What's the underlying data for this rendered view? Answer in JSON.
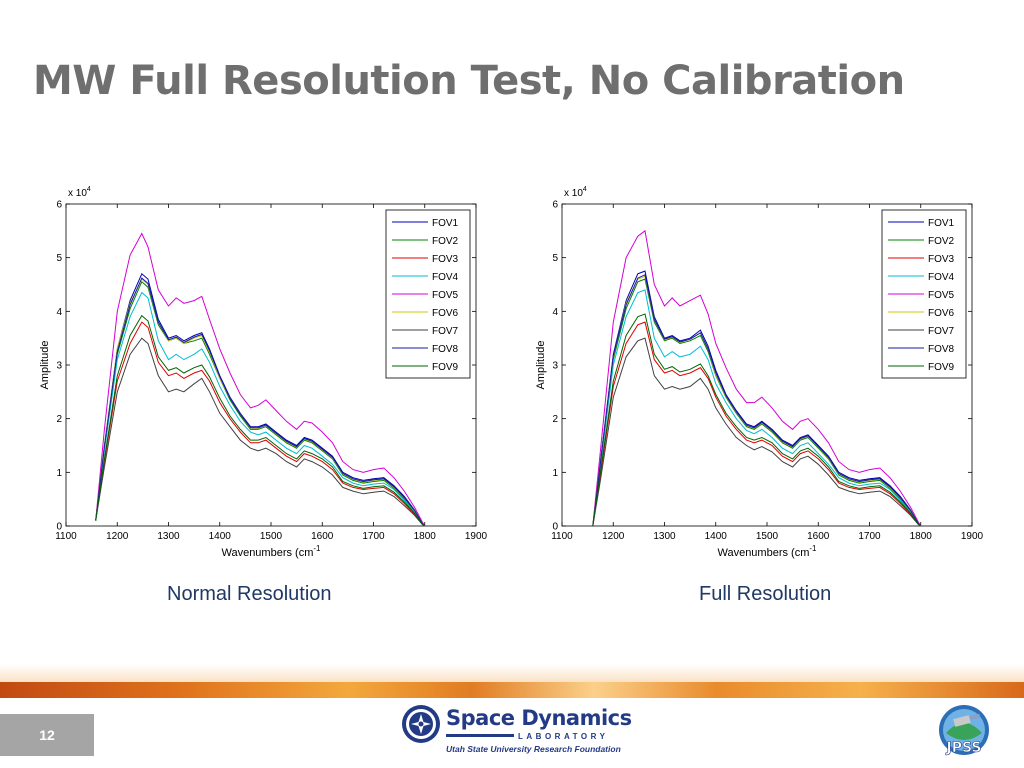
{
  "slide": {
    "title": "MW Full Resolution Test, No Calibration",
    "page_number": "12"
  },
  "captions": [
    "Normal Resolution",
    "Full Resolution"
  ],
  "footer": {
    "sdl_name": "Space Dynamics",
    "sdl_lab": "LABORATORY",
    "sdl_foundation": "Utah State University Research Foundation",
    "jpss_text": "JPSS"
  },
  "colors": {
    "title": "#6f6f6f",
    "caption": "#1f3864",
    "band": "#e0731d",
    "sdl_blue": "#233a86"
  },
  "chart_data": [
    {
      "type": "line",
      "caption": "Normal Resolution",
      "xlabel": "Wavenumbers (cm",
      "xlabel_sup": "-1",
      "ylabel": "Amplitude",
      "exponent_base": "x 10",
      "exponent_power": "4",
      "xlim": [
        1100,
        1900
      ],
      "ylim": [
        0,
        6
      ],
      "xticks": [
        1100,
        1200,
        1300,
        1400,
        1500,
        1600,
        1700,
        1800,
        1900
      ],
      "yticks": [
        0,
        1,
        2,
        3,
        4,
        5,
        6
      ],
      "legend_position": "top-right",
      "grid": false,
      "x": [
        1158,
        1175,
        1200,
        1225,
        1248,
        1260,
        1280,
        1300,
        1315,
        1330,
        1350,
        1365,
        1380,
        1400,
        1420,
        1440,
        1460,
        1475,
        1490,
        1510,
        1530,
        1550,
        1565,
        1580,
        1600,
        1620,
        1640,
        1660,
        1680,
        1700,
        1720,
        1740,
        1760,
        1780,
        1795,
        1800
      ],
      "series": [
        {
          "name": "FOV1",
          "color": "#0000b8",
          "values": [
            0.1,
            1.5,
            3.3,
            4.2,
            4.7,
            4.6,
            3.85,
            3.5,
            3.55,
            3.45,
            3.55,
            3.6,
            3.3,
            2.8,
            2.4,
            2.1,
            1.85,
            1.85,
            1.9,
            1.75,
            1.6,
            1.5,
            1.65,
            1.6,
            1.45,
            1.3,
            1.0,
            0.9,
            0.85,
            0.88,
            0.9,
            0.75,
            0.55,
            0.3,
            0.05,
            0.0
          ]
        },
        {
          "name": "FOV2",
          "color": "#008000",
          "values": [
            0.1,
            1.45,
            3.2,
            4.05,
            4.55,
            4.45,
            3.75,
            3.45,
            3.5,
            3.4,
            3.45,
            3.5,
            3.2,
            2.75,
            2.35,
            2.05,
            1.8,
            1.8,
            1.85,
            1.7,
            1.55,
            1.45,
            1.6,
            1.55,
            1.4,
            1.25,
            0.95,
            0.85,
            0.8,
            0.83,
            0.85,
            0.7,
            0.5,
            0.28,
            0.05,
            0.0
          ]
        },
        {
          "name": "FOV3",
          "color": "#e00000",
          "values": [
            0.1,
            1.2,
            2.7,
            3.4,
            3.8,
            3.7,
            3.05,
            2.8,
            2.85,
            2.75,
            2.85,
            2.9,
            2.7,
            2.3,
            2.0,
            1.75,
            1.55,
            1.55,
            1.6,
            1.45,
            1.3,
            1.2,
            1.35,
            1.3,
            1.2,
            1.05,
            0.8,
            0.72,
            0.68,
            0.7,
            0.72,
            0.6,
            0.42,
            0.22,
            0.04,
            0.0
          ]
        },
        {
          "name": "FOV4",
          "color": "#00bcd4",
          "values": [
            0.1,
            1.4,
            3.1,
            3.9,
            4.35,
            4.25,
            3.45,
            3.1,
            3.2,
            3.1,
            3.2,
            3.3,
            3.05,
            2.6,
            2.25,
            1.95,
            1.75,
            1.7,
            1.75,
            1.6,
            1.45,
            1.35,
            1.5,
            1.45,
            1.3,
            1.15,
            0.9,
            0.8,
            0.75,
            0.78,
            0.8,
            0.68,
            0.48,
            0.26,
            0.05,
            0.0
          ]
        },
        {
          "name": "FOV5",
          "color": "#d400d4",
          "values": [
            0.1,
            1.8,
            4.0,
            5.05,
            5.45,
            5.2,
            4.4,
            4.1,
            4.25,
            4.15,
            4.2,
            4.28,
            3.85,
            3.3,
            2.85,
            2.45,
            2.2,
            2.25,
            2.35,
            2.15,
            1.95,
            1.8,
            1.95,
            1.92,
            1.75,
            1.55,
            1.2,
            1.05,
            1.0,
            1.05,
            1.08,
            0.9,
            0.65,
            0.35,
            0.08,
            0.0
          ]
        },
        {
          "name": "FOV6",
          "color": "#c8c800",
          "values": [
            0.1,
            1.5,
            3.3,
            4.15,
            4.6,
            4.5,
            3.8,
            3.45,
            3.5,
            3.4,
            3.5,
            3.55,
            3.25,
            2.75,
            2.38,
            2.08,
            1.82,
            1.82,
            1.88,
            1.72,
            1.57,
            1.47,
            1.62,
            1.57,
            1.42,
            1.27,
            0.97,
            0.87,
            0.82,
            0.85,
            0.87,
            0.72,
            0.52,
            0.29,
            0.05,
            0.0
          ]
        },
        {
          "name": "FOV7",
          "color": "#404040",
          "values": [
            0.1,
            1.1,
            2.5,
            3.2,
            3.5,
            3.4,
            2.8,
            2.5,
            2.55,
            2.5,
            2.65,
            2.75,
            2.5,
            2.1,
            1.85,
            1.6,
            1.45,
            1.4,
            1.45,
            1.35,
            1.2,
            1.1,
            1.25,
            1.2,
            1.1,
            0.95,
            0.72,
            0.65,
            0.6,
            0.63,
            0.65,
            0.55,
            0.38,
            0.2,
            0.03,
            0.0
          ]
        },
        {
          "name": "FOV8",
          "color": "#1a1aa6",
          "values": [
            0.1,
            1.48,
            3.25,
            4.12,
            4.62,
            4.52,
            3.8,
            3.47,
            3.52,
            3.42,
            3.52,
            3.57,
            3.27,
            2.78,
            2.38,
            2.08,
            1.83,
            1.83,
            1.88,
            1.73,
            1.58,
            1.48,
            1.63,
            1.58,
            1.43,
            1.28,
            0.98,
            0.88,
            0.83,
            0.86,
            0.88,
            0.73,
            0.53,
            0.29,
            0.05,
            0.0
          ]
        },
        {
          "name": "FOV9",
          "color": "#006400",
          "values": [
            0.1,
            1.25,
            2.8,
            3.55,
            3.92,
            3.82,
            3.15,
            2.9,
            2.95,
            2.85,
            2.95,
            3.0,
            2.78,
            2.38,
            2.05,
            1.8,
            1.6,
            1.6,
            1.65,
            1.5,
            1.35,
            1.25,
            1.4,
            1.35,
            1.25,
            1.1,
            0.83,
            0.75,
            0.7,
            0.73,
            0.75,
            0.63,
            0.45,
            0.24,
            0.04,
            0.0
          ]
        }
      ]
    },
    {
      "type": "line",
      "caption": "Full Resolution",
      "xlabel": "Wavenumbers (cm",
      "xlabel_sup": "-1",
      "ylabel": "Amplitude",
      "exponent_base": "x 10",
      "exponent_power": "4",
      "xlim": [
        1100,
        1900
      ],
      "ylim": [
        0,
        6
      ],
      "xticks": [
        1100,
        1200,
        1300,
        1400,
        1500,
        1600,
        1700,
        1800,
        1900
      ],
      "yticks": [
        0,
        1,
        2,
        3,
        4,
        5,
        6
      ],
      "legend_position": "top-right",
      "grid": false,
      "x": [
        1160,
        1175,
        1200,
        1225,
        1248,
        1262,
        1280,
        1300,
        1315,
        1330,
        1350,
        1370,
        1385,
        1400,
        1420,
        1440,
        1460,
        1475,
        1490,
        1510,
        1530,
        1550,
        1565,
        1580,
        1600,
        1620,
        1640,
        1660,
        1680,
        1700,
        1720,
        1740,
        1760,
        1780,
        1795,
        1800
      ],
      "series": [
        {
          "name": "FOV1",
          "color": "#0000b8",
          "values": [
            0.0,
            1.2,
            3.2,
            4.2,
            4.7,
            4.75,
            3.9,
            3.5,
            3.55,
            3.45,
            3.5,
            3.65,
            3.35,
            2.9,
            2.45,
            2.15,
            1.9,
            1.85,
            1.95,
            1.8,
            1.6,
            1.5,
            1.65,
            1.7,
            1.5,
            1.3,
            1.0,
            0.9,
            0.85,
            0.88,
            0.9,
            0.75,
            0.55,
            0.3,
            0.05,
            0.0
          ]
        },
        {
          "name": "FOV2",
          "color": "#008000",
          "values": [
            0.0,
            1.15,
            3.1,
            4.05,
            4.55,
            4.6,
            3.8,
            3.45,
            3.5,
            3.4,
            3.45,
            3.55,
            3.25,
            2.8,
            2.4,
            2.1,
            1.85,
            1.8,
            1.9,
            1.75,
            1.55,
            1.45,
            1.6,
            1.65,
            1.45,
            1.25,
            0.95,
            0.85,
            0.8,
            0.83,
            0.85,
            0.7,
            0.5,
            0.28,
            0.05,
            0.0
          ]
        },
        {
          "name": "FOV3",
          "color": "#e00000",
          "values": [
            0.0,
            0.95,
            2.6,
            3.4,
            3.75,
            3.8,
            3.1,
            2.85,
            2.9,
            2.8,
            2.85,
            2.95,
            2.75,
            2.4,
            2.05,
            1.8,
            1.6,
            1.55,
            1.6,
            1.5,
            1.3,
            1.2,
            1.35,
            1.4,
            1.25,
            1.05,
            0.8,
            0.72,
            0.68,
            0.7,
            0.72,
            0.6,
            0.42,
            0.22,
            0.04,
            0.0
          ]
        },
        {
          "name": "FOV4",
          "color": "#00bcd4",
          "values": [
            0.0,
            1.1,
            3.0,
            3.9,
            4.35,
            4.4,
            3.5,
            3.15,
            3.25,
            3.15,
            3.2,
            3.35,
            3.1,
            2.65,
            2.3,
            2.0,
            1.78,
            1.72,
            1.8,
            1.65,
            1.45,
            1.35,
            1.5,
            1.55,
            1.35,
            1.15,
            0.9,
            0.8,
            0.75,
            0.78,
            0.8,
            0.68,
            0.48,
            0.26,
            0.05,
            0.0
          ]
        },
        {
          "name": "FOV5",
          "color": "#d400d4",
          "values": [
            0.0,
            1.4,
            3.8,
            5.0,
            5.4,
            5.5,
            4.5,
            4.1,
            4.25,
            4.1,
            4.2,
            4.3,
            3.95,
            3.4,
            2.95,
            2.55,
            2.3,
            2.3,
            2.4,
            2.2,
            1.95,
            1.8,
            1.95,
            2.0,
            1.8,
            1.55,
            1.2,
            1.05,
            1.0,
            1.05,
            1.08,
            0.9,
            0.65,
            0.35,
            0.08,
            0.0
          ]
        },
        {
          "name": "FOV6",
          "color": "#c8c800",
          "values": [
            0.0,
            1.18,
            3.15,
            4.15,
            4.6,
            4.65,
            3.85,
            3.47,
            3.52,
            3.42,
            3.48,
            3.6,
            3.3,
            2.82,
            2.42,
            2.12,
            1.87,
            1.82,
            1.92,
            1.77,
            1.57,
            1.47,
            1.62,
            1.67,
            1.47,
            1.27,
            0.97,
            0.87,
            0.82,
            0.85,
            0.87,
            0.72,
            0.52,
            0.29,
            0.05,
            0.0
          ]
        },
        {
          "name": "FOV7",
          "color": "#404040",
          "values": [
            0.0,
            0.85,
            2.4,
            3.15,
            3.45,
            3.5,
            2.8,
            2.55,
            2.6,
            2.55,
            2.6,
            2.75,
            2.55,
            2.2,
            1.9,
            1.65,
            1.5,
            1.42,
            1.48,
            1.38,
            1.2,
            1.1,
            1.25,
            1.3,
            1.15,
            0.95,
            0.72,
            0.65,
            0.6,
            0.63,
            0.65,
            0.55,
            0.38,
            0.2,
            0.03,
            0.0
          ]
        },
        {
          "name": "FOV8",
          "color": "#1a1aa6",
          "values": [
            0.0,
            1.17,
            3.17,
            4.12,
            4.62,
            4.68,
            3.85,
            3.48,
            3.53,
            3.43,
            3.48,
            3.6,
            3.3,
            2.85,
            2.43,
            2.13,
            1.88,
            1.83,
            1.93,
            1.78,
            1.58,
            1.48,
            1.63,
            1.68,
            1.48,
            1.28,
            0.98,
            0.88,
            0.83,
            0.86,
            0.88,
            0.73,
            0.53,
            0.29,
            0.05,
            0.0
          ]
        },
        {
          "name": "FOV9",
          "color": "#006400",
          "values": [
            0.0,
            1.0,
            2.7,
            3.55,
            3.9,
            3.95,
            3.2,
            2.92,
            2.97,
            2.87,
            2.92,
            3.02,
            2.8,
            2.45,
            2.1,
            1.85,
            1.65,
            1.6,
            1.65,
            1.55,
            1.35,
            1.25,
            1.4,
            1.45,
            1.3,
            1.1,
            0.83,
            0.75,
            0.7,
            0.73,
            0.75,
            0.63,
            0.45,
            0.24,
            0.04,
            0.0
          ]
        }
      ]
    }
  ]
}
